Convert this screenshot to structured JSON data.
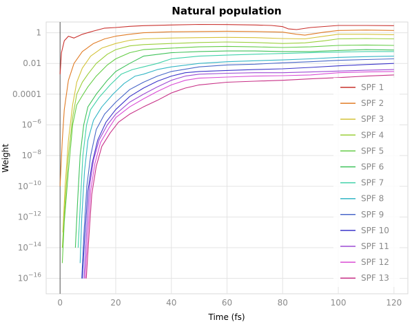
{
  "chart_data": {
    "type": "line",
    "title": "Natural population",
    "xlabel": "Time (fs)",
    "ylabel": "Weight",
    "yscale": "log",
    "xlim": [
      -5,
      125
    ],
    "ylim": [
      1e-17,
      5
    ],
    "xticks": [
      0,
      20,
      40,
      60,
      80,
      100,
      120
    ],
    "xtick_labels": [
      "0",
      "20",
      "40",
      "60",
      "80",
      "100",
      "120"
    ],
    "yticks": [
      1,
      0.01,
      0.0001,
      1e-06,
      1e-08,
      1e-10,
      1e-12,
      1e-14,
      1e-16
    ],
    "ytick_labels": [
      {
        "base": "1",
        "exp": ""
      },
      {
        "base": "0.01",
        "exp": ""
      },
      {
        "base": "0.0001",
        "exp": ""
      },
      {
        "base": "10",
        "exp": "−6"
      },
      {
        "base": "10",
        "exp": "−8"
      },
      {
        "base": "10",
        "exp": "−10"
      },
      {
        "base": "10",
        "exp": "−12"
      },
      {
        "base": "10",
        "exp": "−14"
      },
      {
        "base": "10",
        "exp": "−16"
      }
    ],
    "grid": true,
    "legend_position": "right",
    "series": [
      {
        "name": "SPF 1",
        "color": "#c9302c",
        "points": [
          [
            0,
            0.002
          ],
          [
            0.5,
            0.05
          ],
          [
            1.5,
            0.3
          ],
          [
            3,
            0.6
          ],
          [
            5,
            0.45
          ],
          [
            8,
            0.8
          ],
          [
            12,
            1.3
          ],
          [
            16,
            2.0
          ],
          [
            20,
            2.2
          ],
          [
            25,
            2.6
          ],
          [
            30,
            2.9
          ],
          [
            40,
            3.2
          ],
          [
            50,
            3.5
          ],
          [
            60,
            3.4
          ],
          [
            70,
            3.2
          ],
          [
            76,
            3.0
          ],
          [
            80,
            2.5
          ],
          [
            82,
            1.8
          ],
          [
            85,
            1.6
          ],
          [
            90,
            2.2
          ],
          [
            100,
            3.0
          ],
          [
            110,
            3.0
          ],
          [
            120,
            2.9
          ]
        ]
      },
      {
        "name": "SPF 2",
        "color": "#e07b24",
        "points": [
          [
            0,
            1e-10
          ],
          [
            0.8,
            1e-07
          ],
          [
            1.5,
            1e-05
          ],
          [
            3,
            0.0008
          ],
          [
            5,
            0.01
          ],
          [
            8,
            0.06
          ],
          [
            12,
            0.2
          ],
          [
            16,
            0.4
          ],
          [
            20,
            0.6
          ],
          [
            25,
            0.8
          ],
          [
            30,
            1.0
          ],
          [
            40,
            1.15
          ],
          [
            50,
            1.2
          ],
          [
            60,
            1.25
          ],
          [
            70,
            1.2
          ],
          [
            80,
            1.1
          ],
          [
            85,
            0.8
          ],
          [
            88,
            0.7
          ],
          [
            95,
            1.1
          ],
          [
            100,
            1.4
          ],
          [
            110,
            1.5
          ],
          [
            120,
            1.4
          ]
        ]
      },
      {
        "name": "SPF 3",
        "color": "#d4c33a",
        "points": [
          [
            1,
            1e-13
          ],
          [
            1.8,
            1e-10
          ],
          [
            3,
            1e-07
          ],
          [
            4.5,
            2e-05
          ],
          [
            6,
            0.0006
          ],
          [
            8,
            0.005
          ],
          [
            11,
            0.03
          ],
          [
            15,
            0.1
          ],
          [
            20,
            0.2
          ],
          [
            25,
            0.32
          ],
          [
            30,
            0.4
          ],
          [
            40,
            0.45
          ],
          [
            50,
            0.48
          ],
          [
            60,
            0.5
          ],
          [
            70,
            0.48
          ],
          [
            80,
            0.42
          ],
          [
            88,
            0.4
          ],
          [
            95,
            0.6
          ],
          [
            100,
            0.8
          ],
          [
            110,
            0.8
          ],
          [
            120,
            0.75
          ]
        ]
      },
      {
        "name": "SPF 4",
        "color": "#9bcf3a",
        "points": [
          [
            0.8,
            1e-14
          ],
          [
            1.8,
            1e-11
          ],
          [
            3,
            1e-08
          ],
          [
            4.5,
            3e-06
          ],
          [
            6,
            0.0001
          ],
          [
            8,
            0.0006
          ],
          [
            10,
            0.002
          ],
          [
            13,
            0.01
          ],
          [
            17,
            0.04
          ],
          [
            20,
            0.08
          ],
          [
            25,
            0.14
          ],
          [
            30,
            0.17
          ],
          [
            40,
            0.2
          ],
          [
            50,
            0.23
          ],
          [
            60,
            0.25
          ],
          [
            70,
            0.23
          ],
          [
            80,
            0.2
          ],
          [
            88,
            0.22
          ],
          [
            95,
            0.3
          ],
          [
            100,
            0.4
          ],
          [
            110,
            0.42
          ],
          [
            120,
            0.4
          ]
        ]
      },
      {
        "name": "SPF 5",
        "color": "#63cc45",
        "points": [
          [
            0.8,
            1e-15
          ],
          [
            1.5,
            5e-13
          ],
          [
            3,
            1e-09
          ],
          [
            4.5,
            1e-06
          ],
          [
            6,
            2e-05
          ],
          [
            8,
            8e-05
          ],
          [
            10,
            0.0003
          ],
          [
            13,
            0.0015
          ],
          [
            17,
            0.008
          ],
          [
            20,
            0.02
          ],
          [
            25,
            0.05
          ],
          [
            30,
            0.08
          ],
          [
            40,
            0.1
          ],
          [
            50,
            0.12
          ],
          [
            60,
            0.13
          ],
          [
            70,
            0.12
          ],
          [
            80,
            0.11
          ],
          [
            90,
            0.12
          ],
          [
            100,
            0.15
          ],
          [
            110,
            0.16
          ],
          [
            120,
            0.15
          ]
        ]
      },
      {
        "name": "SPF 6",
        "color": "#3fc25a",
        "points": [
          [
            5.5,
            1e-14
          ],
          [
            6.3,
            1e-11
          ],
          [
            7.2,
            1e-08
          ],
          [
            8.5,
            1e-06
          ],
          [
            10,
            1.5e-05
          ],
          [
            13,
            0.0001
          ],
          [
            17,
            0.0008
          ],
          [
            20,
            0.003
          ],
          [
            25,
            0.01
          ],
          [
            30,
            0.03
          ],
          [
            40,
            0.05
          ],
          [
            50,
            0.06
          ],
          [
            60,
            0.065
          ],
          [
            70,
            0.065
          ],
          [
            80,
            0.06
          ],
          [
            90,
            0.06
          ],
          [
            100,
            0.07
          ],
          [
            110,
            0.08
          ],
          [
            120,
            0.075
          ]
        ]
      },
      {
        "name": "SPF 7",
        "color": "#3fd1a8",
        "points": [
          [
            6.5,
            1e-14
          ],
          [
            7.3,
            1e-11
          ],
          [
            8.2,
            1e-08
          ],
          [
            9.5,
            1e-06
          ],
          [
            11,
            1e-05
          ],
          [
            14,
            6e-05
          ],
          [
            18,
            0.0004
          ],
          [
            22,
            0.002
          ],
          [
            26,
            0.004
          ],
          [
            30,
            0.006
          ],
          [
            35,
            0.01
          ],
          [
            40,
            0.02
          ],
          [
            50,
            0.03
          ],
          [
            60,
            0.035
          ],
          [
            70,
            0.04
          ],
          [
            80,
            0.045
          ],
          [
            90,
            0.05
          ],
          [
            100,
            0.055
          ],
          [
            110,
            0.06
          ],
          [
            120,
            0.06
          ]
        ]
      },
      {
        "name": "SPF 8",
        "color": "#33b5c5",
        "points": [
          [
            7.2,
            1e-15
          ],
          [
            7.8,
            1e-12
          ],
          [
            8.8,
            1e-09
          ],
          [
            10,
            1e-07
          ],
          [
            12,
            2e-06
          ],
          [
            15,
            1.5e-05
          ],
          [
            19,
            0.0001
          ],
          [
            23,
            0.0005
          ],
          [
            27,
            0.0015
          ],
          [
            30,
            0.002
          ],
          [
            35,
            0.004
          ],
          [
            40,
            0.006
          ],
          [
            50,
            0.01
          ],
          [
            60,
            0.013
          ],
          [
            70,
            0.015
          ],
          [
            80,
            0.017
          ],
          [
            90,
            0.02
          ],
          [
            100,
            0.025
          ],
          [
            110,
            0.028
          ],
          [
            120,
            0.03
          ]
        ]
      },
      {
        "name": "SPF 9",
        "color": "#4766c8",
        "points": [
          [
            7.8,
            1e-16
          ],
          [
            8.6,
            1e-13
          ],
          [
            9.6,
            1e-10
          ],
          [
            11,
            1e-08
          ],
          [
            13,
            5e-07
          ],
          [
            16,
            5e-06
          ],
          [
            20,
            3e-05
          ],
          [
            25,
            0.0002
          ],
          [
            30,
            0.0006
          ],
          [
            35,
            0.0015
          ],
          [
            40,
            0.003
          ],
          [
            50,
            0.006
          ],
          [
            60,
            0.008
          ],
          [
            70,
            0.009
          ],
          [
            80,
            0.011
          ],
          [
            90,
            0.013
          ],
          [
            100,
            0.016
          ],
          [
            110,
            0.018
          ],
          [
            120,
            0.02
          ]
        ]
      },
      {
        "name": "SPF 10",
        "color": "#3a34c9",
        "points": [
          [
            8,
            1e-16
          ],
          [
            8.8,
            3e-14
          ],
          [
            10,
            5e-11
          ],
          [
            11.5,
            3e-09
          ],
          [
            13.5,
            1e-07
          ],
          [
            16.5,
            1.5e-06
          ],
          [
            20,
            1e-05
          ],
          [
            25,
            7e-05
          ],
          [
            30,
            0.00025
          ],
          [
            35,
            0.0007
          ],
          [
            40,
            0.0015
          ],
          [
            45,
            0.0025
          ],
          [
            50,
            0.003
          ],
          [
            60,
            0.0035
          ],
          [
            70,
            0.004
          ],
          [
            80,
            0.0045
          ],
          [
            90,
            0.0055
          ],
          [
            100,
            0.007
          ],
          [
            110,
            0.0085
          ],
          [
            120,
            0.01
          ]
        ]
      },
      {
        "name": "SPF 11",
        "color": "#9c48d4",
        "points": [
          [
            8.6,
            1e-16
          ],
          [
            9.4,
            5e-14
          ],
          [
            10.6,
            1e-10
          ],
          [
            12,
            5e-09
          ],
          [
            14,
            1e-07
          ],
          [
            17,
            1e-06
          ],
          [
            20,
            5e-06
          ],
          [
            25,
            3e-05
          ],
          [
            30,
            0.0001
          ],
          [
            35,
            0.0003
          ],
          [
            40,
            0.0008
          ],
          [
            45,
            0.0015
          ],
          [
            50,
            0.002
          ],
          [
            60,
            0.0023
          ],
          [
            70,
            0.0025
          ],
          [
            80,
            0.0025
          ],
          [
            90,
            0.0028
          ],
          [
            100,
            0.0032
          ],
          [
            110,
            0.0036
          ],
          [
            120,
            0.004
          ]
        ]
      },
      {
        "name": "SPF 12",
        "color": "#d94bd4",
        "points": [
          [
            9,
            1e-16
          ],
          [
            9.8,
            3e-14
          ],
          [
            11,
            5e-11
          ],
          [
            12.5,
            3e-09
          ],
          [
            14.5,
            7e-08
          ],
          [
            17.5,
            6e-07
          ],
          [
            20,
            3e-06
          ],
          [
            25,
            1.5e-05
          ],
          [
            30,
            5e-05
          ],
          [
            35,
            0.00015
          ],
          [
            40,
            0.0004
          ],
          [
            45,
            0.0008
          ],
          [
            50,
            0.0011
          ],
          [
            60,
            0.0013
          ],
          [
            70,
            0.0015
          ],
          [
            80,
            0.0016
          ],
          [
            90,
            0.0018
          ],
          [
            100,
            0.0025
          ],
          [
            110,
            0.0028
          ],
          [
            120,
            0.003
          ]
        ]
      },
      {
        "name": "SPF 13",
        "color": "#c72f86",
        "points": [
          [
            9.4,
            1e-16
          ],
          [
            10.2,
            2e-14
          ],
          [
            11.4,
            3e-11
          ],
          [
            13,
            2e-09
          ],
          [
            15,
            4e-08
          ],
          [
            18,
            3e-07
          ],
          [
            21,
            1.5e-06
          ],
          [
            25,
            5e-06
          ],
          [
            30,
            1.5e-05
          ],
          [
            35,
            4e-05
          ],
          [
            40,
            0.00012
          ],
          [
            45,
            0.00025
          ],
          [
            50,
            0.0004
          ],
          [
            60,
            0.0006
          ],
          [
            70,
            0.0007
          ],
          [
            80,
            0.0008
          ],
          [
            90,
            0.001
          ],
          [
            100,
            0.0012
          ],
          [
            110,
            0.0015
          ],
          [
            120,
            0.0018
          ]
        ]
      }
    ]
  }
}
